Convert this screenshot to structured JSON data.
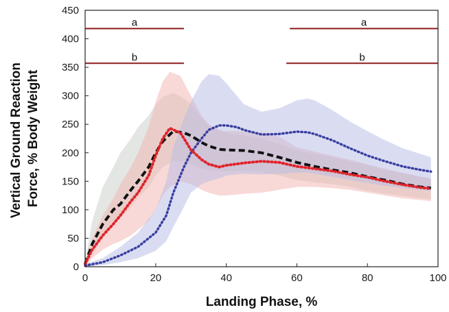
{
  "chart_data": {
    "type": "line",
    "xlabel": "Landing Phase, %",
    "ylabel_lines": [
      "Vertical Ground Reaction",
      "Force, % Body Weight"
    ],
    "xlim": [
      0,
      100
    ],
    "ylim": [
      0,
      450
    ],
    "xticks": [
      0,
      20,
      40,
      60,
      80,
      100
    ],
    "yticks": [
      0,
      50,
      100,
      150,
      200,
      250,
      300,
      350,
      400,
      450
    ],
    "grid": false,
    "colors": {
      "gray": "#111111",
      "red": "#e0242b",
      "blue": "#3a3fa0",
      "gray_band": "#c8cdc8",
      "red_band": "#f2b3b0",
      "blue_band": "#b6bce6",
      "sig_line": "#8b1a1a"
    },
    "significance_bars": [
      {
        "label": "a",
        "y": 418,
        "segments": [
          [
            0,
            28
          ],
          [
            58,
            100
          ]
        ]
      },
      {
        "label": "b",
        "y": 357,
        "segments": [
          [
            0,
            28
          ],
          [
            57,
            100
          ]
        ]
      }
    ],
    "series": [
      {
        "style": "dashed-black",
        "x": [
          0,
          2,
          5,
          8,
          10,
          13,
          15,
          18,
          20,
          22,
          25,
          28,
          30,
          33,
          35,
          38,
          40,
          45,
          50,
          55,
          60,
          65,
          70,
          75,
          80,
          85,
          90,
          95,
          98
        ],
        "y": [
          5,
          40,
          75,
          100,
          110,
          135,
          150,
          175,
          200,
          220,
          238,
          235,
          230,
          218,
          212,
          206,
          205,
          204,
          200,
          192,
          183,
          176,
          170,
          165,
          158,
          152,
          145,
          140,
          138
        ],
        "lower": [
          0,
          20,
          50,
          75,
          85,
          105,
          120,
          140,
          160,
          175,
          185,
          185,
          180,
          172,
          170,
          168,
          168,
          168,
          166,
          160,
          152,
          148,
          145,
          140,
          133,
          128,
          124,
          120,
          118
        ],
        "upper": [
          10,
          80,
          140,
          175,
          200,
          225,
          245,
          265,
          285,
          298,
          305,
          295,
          285,
          262,
          248,
          240,
          235,
          230,
          225,
          215,
          205,
          198,
          192,
          185,
          178,
          170,
          164,
          158,
          155
        ]
      },
      {
        "style": "dotted-red",
        "x": [
          0,
          2,
          5,
          8,
          10,
          13,
          15,
          18,
          20,
          22,
          24,
          27,
          30,
          33,
          35,
          38,
          40,
          45,
          50,
          55,
          60,
          65,
          70,
          75,
          80,
          85,
          90,
          95,
          98
        ],
        "y": [
          5,
          30,
          55,
          75,
          90,
          115,
          130,
          160,
          195,
          225,
          243,
          235,
          205,
          188,
          180,
          175,
          178,
          182,
          185,
          183,
          176,
          172,
          168,
          162,
          157,
          150,
          144,
          139,
          137
        ],
        "lower": [
          0,
          15,
          30,
          40,
          45,
          55,
          65,
          80,
          100,
          125,
          140,
          150,
          145,
          135,
          130,
          125,
          125,
          128,
          130,
          135,
          140,
          140,
          138,
          135,
          130,
          125,
          120,
          117,
          115
        ],
        "upper": [
          10,
          50,
          90,
          120,
          145,
          175,
          200,
          245,
          290,
          325,
          342,
          335,
          300,
          265,
          250,
          240,
          238,
          238,
          236,
          228,
          210,
          202,
          195,
          188,
          180,
          172,
          165,
          158,
          155
        ]
      },
      {
        "style": "dotted-blue",
        "x": [
          0,
          5,
          10,
          15,
          20,
          23,
          25,
          28,
          30,
          33,
          35,
          38,
          40,
          43,
          45,
          50,
          55,
          60,
          63,
          65,
          70,
          75,
          80,
          85,
          90,
          95,
          98
        ],
        "y": [
          2,
          8,
          20,
          35,
          60,
          90,
          130,
          175,
          200,
          225,
          240,
          248,
          248,
          245,
          240,
          232,
          233,
          237,
          236,
          233,
          222,
          208,
          195,
          185,
          176,
          170,
          167
        ],
        "lower": [
          0,
          3,
          8,
          15,
          28,
          45,
          70,
          105,
          130,
          145,
          150,
          155,
          160,
          162,
          163,
          162,
          163,
          165,
          165,
          163,
          158,
          152,
          147,
          142,
          138,
          135,
          133
        ],
        "upper": [
          5,
          15,
          35,
          60,
          100,
          150,
          210,
          260,
          290,
          325,
          338,
          335,
          322,
          300,
          285,
          272,
          278,
          292,
          295,
          292,
          275,
          255,
          238,
          222,
          208,
          198,
          192
        ]
      }
    ]
  }
}
